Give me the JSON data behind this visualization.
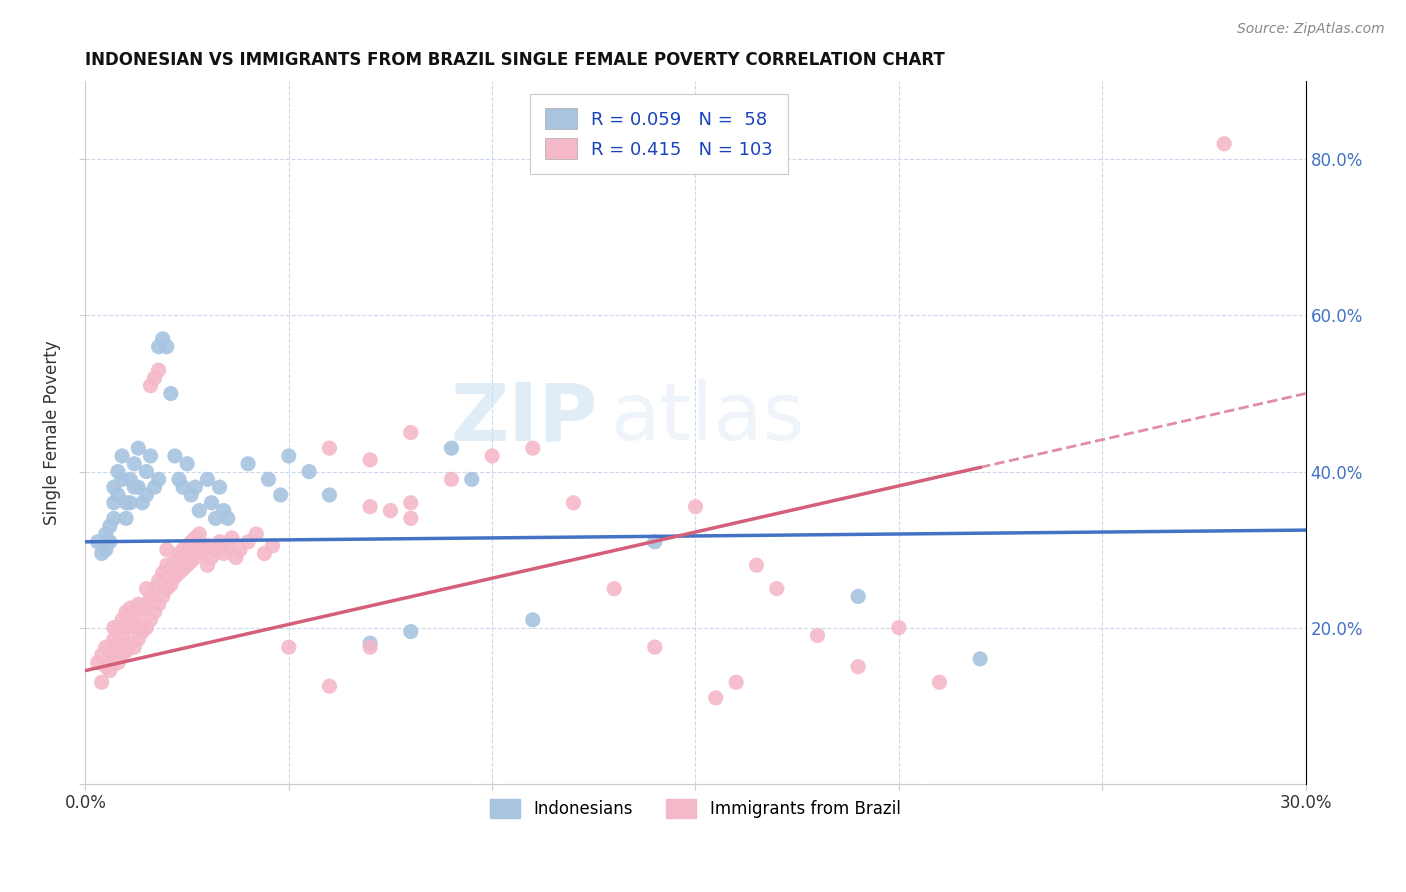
{
  "title": "INDONESIAN VS IMMIGRANTS FROM BRAZIL SINGLE FEMALE POVERTY CORRELATION CHART",
  "source": "Source: ZipAtlas.com",
  "ylabel": "Single Female Poverty",
  "xlim": [
    0.0,
    0.3
  ],
  "ylim": [
    0.0,
    0.9
  ],
  "x_ticks": [
    0.0,
    0.05,
    0.1,
    0.15,
    0.2,
    0.25,
    0.3
  ],
  "y_ticks": [
    0.0,
    0.2,
    0.4,
    0.6,
    0.8
  ],
  "legend_entries": [
    "Indonesians",
    "Immigrants from Brazil"
  ],
  "indonesian_color": "#a8c4e0",
  "brazil_color": "#f4b8c8",
  "indonesian_line_color": "#4472c4",
  "brazil_line_color": "#d45f7a",
  "R_indonesian": 0.059,
  "N_indonesian": 58,
  "R_brazil": 0.415,
  "N_brazil": 103,
  "watermark_zip": "ZIP",
  "watermark_atlas": "atlas",
  "indonesian_scatter": [
    [
      0.003,
      0.31
    ],
    [
      0.004,
      0.295
    ],
    [
      0.005,
      0.32
    ],
    [
      0.005,
      0.3
    ],
    [
      0.006,
      0.33
    ],
    [
      0.006,
      0.31
    ],
    [
      0.007,
      0.38
    ],
    [
      0.007,
      0.36
    ],
    [
      0.007,
      0.34
    ],
    [
      0.008,
      0.4
    ],
    [
      0.008,
      0.37
    ],
    [
      0.009,
      0.42
    ],
    [
      0.009,
      0.39
    ],
    [
      0.01,
      0.36
    ],
    [
      0.01,
      0.34
    ],
    [
      0.011,
      0.39
    ],
    [
      0.011,
      0.36
    ],
    [
      0.012,
      0.41
    ],
    [
      0.012,
      0.38
    ],
    [
      0.013,
      0.43
    ],
    [
      0.013,
      0.38
    ],
    [
      0.014,
      0.36
    ],
    [
      0.015,
      0.4
    ],
    [
      0.015,
      0.37
    ],
    [
      0.016,
      0.42
    ],
    [
      0.017,
      0.38
    ],
    [
      0.018,
      0.39
    ],
    [
      0.018,
      0.56
    ],
    [
      0.019,
      0.57
    ],
    [
      0.02,
      0.56
    ],
    [
      0.021,
      0.5
    ],
    [
      0.022,
      0.42
    ],
    [
      0.023,
      0.39
    ],
    [
      0.024,
      0.38
    ],
    [
      0.025,
      0.41
    ],
    [
      0.026,
      0.37
    ],
    [
      0.027,
      0.38
    ],
    [
      0.028,
      0.35
    ],
    [
      0.03,
      0.39
    ],
    [
      0.031,
      0.36
    ],
    [
      0.032,
      0.34
    ],
    [
      0.033,
      0.38
    ],
    [
      0.034,
      0.35
    ],
    [
      0.035,
      0.34
    ],
    [
      0.04,
      0.41
    ],
    [
      0.045,
      0.39
    ],
    [
      0.048,
      0.37
    ],
    [
      0.05,
      0.42
    ],
    [
      0.055,
      0.4
    ],
    [
      0.06,
      0.37
    ],
    [
      0.07,
      0.18
    ],
    [
      0.08,
      0.195
    ],
    [
      0.09,
      0.43
    ],
    [
      0.095,
      0.39
    ],
    [
      0.11,
      0.21
    ],
    [
      0.14,
      0.31
    ],
    [
      0.19,
      0.24
    ],
    [
      0.22,
      0.16
    ]
  ],
  "brazil_scatter": [
    [
      0.003,
      0.155
    ],
    [
      0.004,
      0.13
    ],
    [
      0.004,
      0.165
    ],
    [
      0.005,
      0.15
    ],
    [
      0.005,
      0.175
    ],
    [
      0.006,
      0.145
    ],
    [
      0.006,
      0.17
    ],
    [
      0.007,
      0.16
    ],
    [
      0.007,
      0.185
    ],
    [
      0.007,
      0.2
    ],
    [
      0.008,
      0.155
    ],
    [
      0.008,
      0.18
    ],
    [
      0.008,
      0.2
    ],
    [
      0.009,
      0.165
    ],
    [
      0.009,
      0.19
    ],
    [
      0.009,
      0.21
    ],
    [
      0.01,
      0.17
    ],
    [
      0.01,
      0.2
    ],
    [
      0.01,
      0.22
    ],
    [
      0.011,
      0.18
    ],
    [
      0.011,
      0.2
    ],
    [
      0.011,
      0.225
    ],
    [
      0.012,
      0.175
    ],
    [
      0.012,
      0.205
    ],
    [
      0.013,
      0.185
    ],
    [
      0.013,
      0.215
    ],
    [
      0.013,
      0.23
    ],
    [
      0.014,
      0.195
    ],
    [
      0.014,
      0.225
    ],
    [
      0.015,
      0.2
    ],
    [
      0.015,
      0.23
    ],
    [
      0.015,
      0.25
    ],
    [
      0.016,
      0.21
    ],
    [
      0.016,
      0.24
    ],
    [
      0.016,
      0.51
    ],
    [
      0.017,
      0.22
    ],
    [
      0.017,
      0.25
    ],
    [
      0.017,
      0.52
    ],
    [
      0.018,
      0.23
    ],
    [
      0.018,
      0.26
    ],
    [
      0.018,
      0.53
    ],
    [
      0.019,
      0.24
    ],
    [
      0.019,
      0.27
    ],
    [
      0.02,
      0.25
    ],
    [
      0.02,
      0.28
    ],
    [
      0.02,
      0.3
    ],
    [
      0.021,
      0.255
    ],
    [
      0.021,
      0.275
    ],
    [
      0.022,
      0.265
    ],
    [
      0.022,
      0.285
    ],
    [
      0.023,
      0.27
    ],
    [
      0.023,
      0.295
    ],
    [
      0.024,
      0.275
    ],
    [
      0.024,
      0.3
    ],
    [
      0.025,
      0.28
    ],
    [
      0.025,
      0.305
    ],
    [
      0.026,
      0.285
    ],
    [
      0.026,
      0.31
    ],
    [
      0.027,
      0.29
    ],
    [
      0.027,
      0.315
    ],
    [
      0.028,
      0.295
    ],
    [
      0.028,
      0.32
    ],
    [
      0.029,
      0.3
    ],
    [
      0.03,
      0.305
    ],
    [
      0.03,
      0.28
    ],
    [
      0.031,
      0.29
    ],
    [
      0.032,
      0.3
    ],
    [
      0.033,
      0.31
    ],
    [
      0.034,
      0.295
    ],
    [
      0.035,
      0.305
    ],
    [
      0.036,
      0.315
    ],
    [
      0.037,
      0.29
    ],
    [
      0.038,
      0.3
    ],
    [
      0.04,
      0.31
    ],
    [
      0.042,
      0.32
    ],
    [
      0.044,
      0.295
    ],
    [
      0.046,
      0.305
    ],
    [
      0.05,
      0.175
    ],
    [
      0.06,
      0.125
    ],
    [
      0.07,
      0.175
    ],
    [
      0.08,
      0.36
    ],
    [
      0.09,
      0.39
    ],
    [
      0.1,
      0.42
    ],
    [
      0.11,
      0.43
    ],
    [
      0.12,
      0.36
    ],
    [
      0.13,
      0.25
    ],
    [
      0.14,
      0.175
    ],
    [
      0.15,
      0.355
    ],
    [
      0.155,
      0.11
    ],
    [
      0.16,
      0.13
    ],
    [
      0.165,
      0.28
    ],
    [
      0.17,
      0.25
    ],
    [
      0.18,
      0.19
    ],
    [
      0.19,
      0.15
    ],
    [
      0.2,
      0.2
    ],
    [
      0.21,
      0.13
    ],
    [
      0.06,
      0.43
    ],
    [
      0.07,
      0.415
    ],
    [
      0.08,
      0.45
    ],
    [
      0.28,
      0.82
    ],
    [
      0.07,
      0.355
    ],
    [
      0.075,
      0.35
    ],
    [
      0.08,
      0.34
    ]
  ]
}
